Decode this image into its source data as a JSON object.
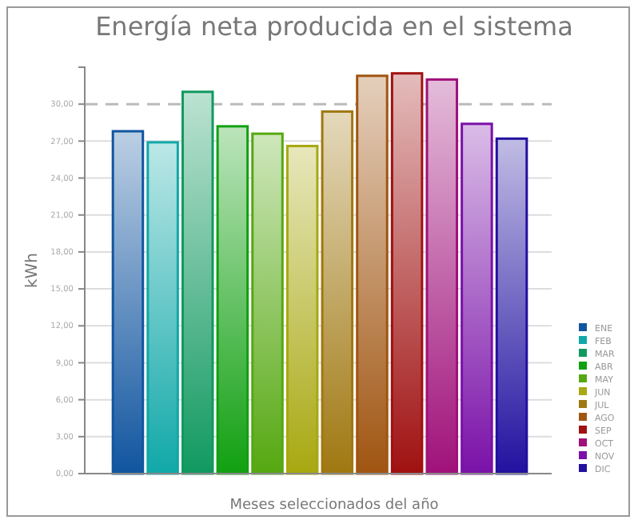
{
  "chart_data": {
    "type": "bar",
    "title": "Energía neta producida en el sistema",
    "xlabel": "Meses seleccionados del año",
    "ylabel": "kWh",
    "categories": [
      null
    ],
    "series": [
      {
        "name": "ENE",
        "color": "#1155a0",
        "values": [
          27.8
        ]
      },
      {
        "name": "FEB",
        "color": "#11a8a8",
        "values": [
          26.9
        ]
      },
      {
        "name": "MAR",
        "color": "#119960",
        "values": [
          31.0
        ]
      },
      {
        "name": "ABR",
        "color": "#11a011",
        "values": [
          28.2
        ]
      },
      {
        "name": "MAY",
        "color": "#55a811",
        "values": [
          27.6
        ]
      },
      {
        "name": "JUN",
        "color": "#a8a811",
        "values": [
          26.6
        ]
      },
      {
        "name": "JUL",
        "color": "#a07811",
        "values": [
          29.4
        ]
      },
      {
        "name": "AGO",
        "color": "#a05511",
        "values": [
          32.3
        ]
      },
      {
        "name": "SEP",
        "color": "#a01111",
        "values": [
          32.5
        ]
      },
      {
        "name": "OCT",
        "color": "#a0117a",
        "values": [
          32.0
        ]
      },
      {
        "name": "NOV",
        "color": "#7a11a8",
        "values": [
          28.4
        ]
      },
      {
        "name": "DIC",
        "color": "#2211a0",
        "values": [
          27.2
        ]
      }
    ],
    "ylim": [
      0,
      33
    ],
    "yticks": [
      {
        "value": 0,
        "label": "0,00"
      },
      {
        "value": 3,
        "label": "3,00"
      },
      {
        "value": 6,
        "label": "6,00"
      },
      {
        "value": 9,
        "label": "9,00"
      },
      {
        "value": 12,
        "label": "12,00"
      },
      {
        "value": 15,
        "label": "15,00"
      },
      {
        "value": 18,
        "label": "18,00"
      },
      {
        "value": 21,
        "label": "21,00"
      },
      {
        "value": 24,
        "label": "24,00"
      },
      {
        "value": 27,
        "label": "27,00"
      },
      {
        "value": 30,
        "label": "30,00"
      }
    ],
    "grid": "y",
    "legend": "bottom right",
    "ref_lines": [
      {
        "axis": "y",
        "value": 30,
        "line_style": "dashed"
      }
    ]
  }
}
